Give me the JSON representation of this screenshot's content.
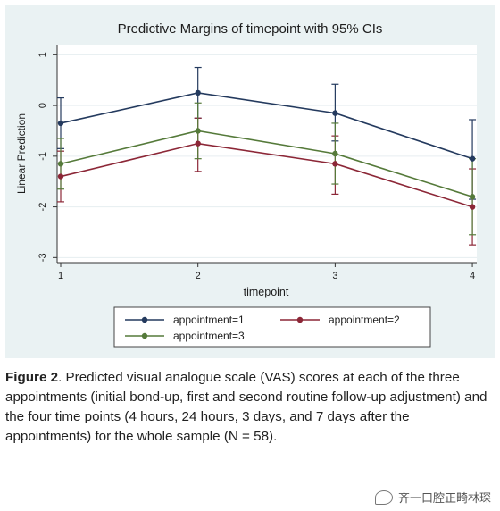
{
  "chart_data": {
    "type": "line",
    "title": "Predictive Margins of timepoint with 95% CIs",
    "xlabel": "timepoint",
    "ylabel": "Linear Prediction",
    "x": [
      1,
      2,
      3,
      4
    ],
    "x_ticks": [
      "1",
      "2",
      "3",
      "4"
    ],
    "y_ticks": [
      "1",
      "0",
      "-1",
      "-2",
      "-3"
    ],
    "ylim": [
      -3.1,
      1.2
    ],
    "grid": true,
    "legend_position": "bottom",
    "series": [
      {
        "name": "appointment=1",
        "color": "#243a5e",
        "values": [
          -0.35,
          0.25,
          -0.15,
          -1.05
        ],
        "ci_low": [
          -0.85,
          -0.25,
          -0.7,
          -1.85
        ],
        "ci_high": [
          0.15,
          0.75,
          0.42,
          -0.28
        ]
      },
      {
        "name": "appointment=2",
        "color": "#8c2737",
        "values": [
          -1.4,
          -0.75,
          -1.15,
          -2.0
        ],
        "ci_low": [
          -1.9,
          -1.3,
          -1.75,
          -2.75
        ],
        "ci_high": [
          -0.9,
          -0.25,
          -0.6,
          -1.25
        ]
      },
      {
        "name": "appointment=3",
        "color": "#557a3a",
        "values": [
          -1.15,
          -0.5,
          -0.95,
          -1.8
        ],
        "ci_low": [
          -1.65,
          -1.05,
          -1.55,
          -2.55
        ],
        "ci_high": [
          -0.65,
          0.05,
          -0.35,
          -1.05
        ]
      }
    ]
  },
  "caption": {
    "label": "Figure 2",
    "text": ". Predicted visual analogue scale (VAS) scores at each of the three appointments (initial bond-up, first and second routine follow-up adjustment) and the four time points (4 hours, 24 hours, 3 days, and 7 days after the appointments) for the whole sample (N = 58)."
  },
  "watermark": {
    "icon": "wechat-icon",
    "text": "齐一口腔正畸林琛"
  }
}
